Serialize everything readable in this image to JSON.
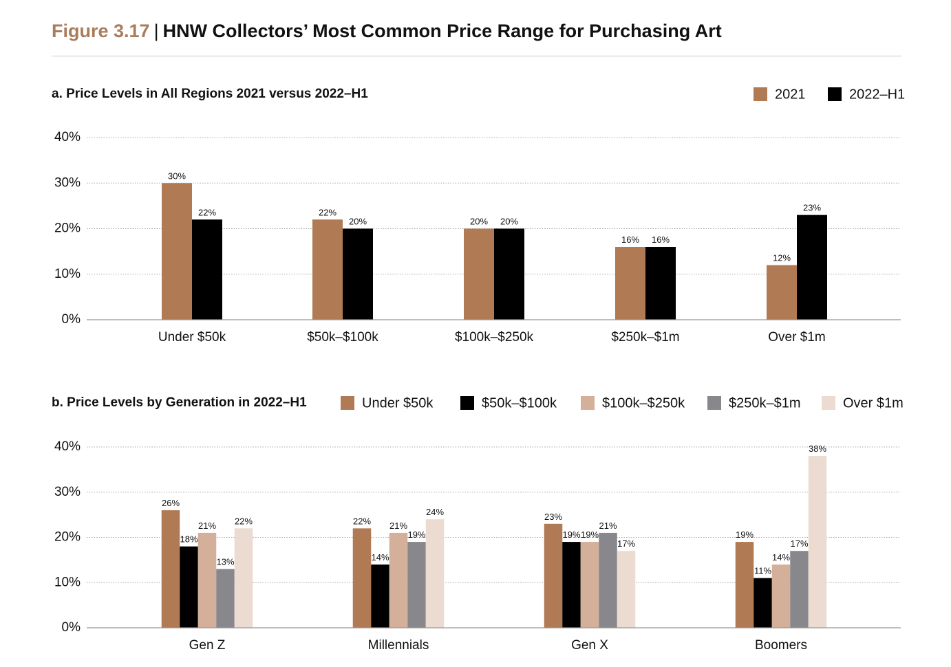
{
  "header": {
    "figure_number": "Figure 3.17",
    "separator": "|",
    "title": "HNW Collectors’ Most Common Price Range for Purchasing Art"
  },
  "colors": {
    "under_50k": "#b07a55",
    "k50_100k": "#000000",
    "k100_250k": "#d4b09a",
    "k250k_1m": "#87878c",
    "over_1m": "#ebdbd0",
    "y2021": "#b07a55",
    "y2022": "#000000",
    "grid": "#aaaaaa",
    "axis": "#999999"
  },
  "chart_data": [
    {
      "id": "a",
      "type": "bar",
      "title": "a. Price Levels in All Regions 2021 versus 2022–H1",
      "categories": [
        "Under $50k",
        "$50k–$100k",
        "$100k–$250k",
        "$250k–$1m",
        "Over $1m"
      ],
      "series": [
        {
          "name": "2021",
          "values": [
            30,
            22,
            20,
            16,
            12
          ],
          "labels": [
            "30%",
            "22%",
            "20%",
            "16%",
            "12%"
          ]
        },
        {
          "name": "2022–H1",
          "values": [
            22,
            20,
            20,
            16,
            23
          ],
          "labels": [
            "22%",
            "20%",
            "20%",
            "16%",
            "23%"
          ]
        }
      ],
      "y_ticks": [
        "0%",
        "10%",
        "20%",
        "30%",
        "40%"
      ],
      "ylim": [
        0,
        40
      ],
      "legend_position": "top-right",
      "grid": true
    },
    {
      "id": "b",
      "type": "bar",
      "title": "b. Price Levels by Generation in 2022–H1",
      "categories": [
        "Gen Z",
        "Millennials",
        "Gen X",
        "Boomers"
      ],
      "series": [
        {
          "name": "Under $50k",
          "values": [
            26,
            22,
            23,
            19
          ],
          "labels": [
            "26%",
            "22%",
            "23%",
            "19%"
          ]
        },
        {
          "name": "$50k–$100k",
          "values": [
            18,
            14,
            19,
            11
          ],
          "labels": [
            "18%",
            "14%",
            "19%",
            "11%"
          ]
        },
        {
          "name": "$100k–$250k",
          "values": [
            21,
            21,
            19,
            14
          ],
          "labels": [
            "21%",
            "21%",
            "19%",
            "14%"
          ]
        },
        {
          "name": "$250k–$1m",
          "values": [
            13,
            19,
            21,
            17
          ],
          "labels": [
            "13%",
            "19%",
            "21%",
            "17%"
          ]
        },
        {
          "name": "Over $1m",
          "values": [
            22,
            24,
            17,
            38
          ],
          "labels": [
            "22%",
            "24%",
            "17%",
            "38%"
          ]
        }
      ],
      "y_ticks": [
        "0%",
        "10%",
        "20%",
        "30%",
        "40%"
      ],
      "ylim": [
        0,
        40
      ],
      "legend_position": "top-right",
      "grid": true
    }
  ]
}
